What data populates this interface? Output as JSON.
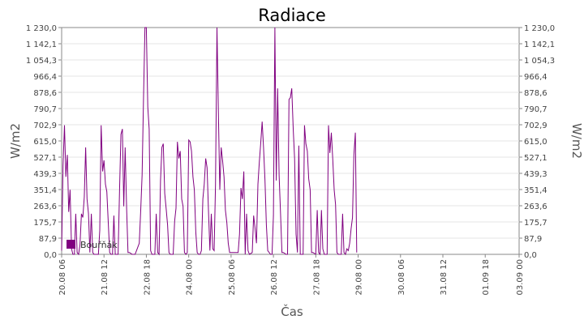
{
  "chart_data": {
    "type": "line",
    "title": "Radiace",
    "xlabel": "Čas",
    "ylabel_left": "W/m2",
    "ylabel_right": "W/m2",
    "ylim": [
      0,
      1230
    ],
    "yticks": [
      "0,0",
      "87,9",
      "175,7",
      "263,6",
      "351,4",
      "439,3",
      "527,1",
      "615,0",
      "702,9",
      "790,7",
      "878,6",
      "966,4",
      "1 054,3",
      "1 142,1",
      "1 230,0"
    ],
    "xlim_hours": [
      0,
      324
    ],
    "xticks": [
      {
        "label": "20.08 06",
        "h": 0
      },
      {
        "label": "21.08 12",
        "h": 30
      },
      {
        "label": "22.08 18",
        "h": 60
      },
      {
        "label": "24.08 00",
        "h": 90
      },
      {
        "label": "25.08 06",
        "h": 120
      },
      {
        "label": "26.08 12",
        "h": 150
      },
      {
        "label": "27.08 18",
        "h": 180
      },
      {
        "label": "29.08 00",
        "h": 210
      },
      {
        "label": "30.08 06",
        "h": 240
      },
      {
        "label": "31.08 12",
        "h": 270
      },
      {
        "label": "01.09 18",
        "h": 300
      },
      {
        "label": "03.09 00",
        "h": 324
      }
    ],
    "grid": true,
    "legend": {
      "position": "bottom-left",
      "color": "#800080"
    },
    "series": [
      {
        "name": "Bouřňák",
        "color": "#800080",
        "points": [
          [
            0,
            20
          ],
          [
            1,
            480
          ],
          [
            2,
            700
          ],
          [
            3,
            420
          ],
          [
            4,
            540
          ],
          [
            5,
            230
          ],
          [
            6,
            350
          ],
          [
            7,
            30
          ],
          [
            8,
            0
          ],
          [
            9,
            0
          ],
          [
            10,
            220
          ],
          [
            11,
            10
          ],
          [
            12,
            0
          ],
          [
            13,
            50
          ],
          [
            14,
            220
          ],
          [
            15,
            200
          ],
          [
            16,
            310
          ],
          [
            17,
            580
          ],
          [
            18,
            300
          ],
          [
            19,
            220
          ],
          [
            20,
            10
          ],
          [
            21,
            220
          ],
          [
            22,
            10
          ],
          [
            23,
            0
          ],
          [
            25,
            0
          ],
          [
            26,
            0
          ],
          [
            27,
            130
          ],
          [
            28,
            700
          ],
          [
            29,
            450
          ],
          [
            30,
            510
          ],
          [
            31,
            380
          ],
          [
            32,
            340
          ],
          [
            33,
            180
          ],
          [
            34,
            10
          ],
          [
            35,
            0
          ],
          [
            36,
            0
          ],
          [
            37,
            210
          ],
          [
            38,
            0
          ],
          [
            40,
            0
          ],
          [
            41,
            350
          ],
          [
            42,
            650
          ],
          [
            43,
            680
          ],
          [
            44,
            260
          ],
          [
            45,
            580
          ],
          [
            46,
            250
          ],
          [
            47,
            10
          ],
          [
            48,
            10
          ],
          [
            50,
            0
          ],
          [
            52,
            0
          ],
          [
            53,
            20
          ],
          [
            55,
            60
          ],
          [
            56,
            240
          ],
          [
            57,
            430
          ],
          [
            58,
            860
          ],
          [
            59,
            1230
          ],
          [
            60,
            1240
          ],
          [
            61,
            800
          ],
          [
            62,
            680
          ],
          [
            63,
            20
          ],
          [
            64,
            0
          ],
          [
            66,
            0
          ],
          [
            67,
            220
          ],
          [
            68,
            10
          ],
          [
            69,
            0
          ],
          [
            70,
            400
          ],
          [
            71,
            580
          ],
          [
            72,
            600
          ],
          [
            73,
            330
          ],
          [
            74,
            250
          ],
          [
            75,
            160
          ],
          [
            76,
            10
          ],
          [
            77,
            0
          ],
          [
            79,
            0
          ],
          [
            80,
            180
          ],
          [
            81,
            250
          ],
          [
            82,
            610
          ],
          [
            83,
            520
          ],
          [
            84,
            560
          ],
          [
            85,
            300
          ],
          [
            86,
            260
          ],
          [
            87,
            10
          ],
          [
            88,
            0
          ],
          [
            89,
            10
          ],
          [
            90,
            620
          ],
          [
            91,
            610
          ],
          [
            92,
            560
          ],
          [
            93,
            420
          ],
          [
            94,
            350
          ],
          [
            95,
            120
          ],
          [
            96,
            10
          ],
          [
            97,
            0
          ],
          [
            98,
            0
          ],
          [
            99,
            20
          ],
          [
            100,
            300
          ],
          [
            101,
            380
          ],
          [
            102,
            520
          ],
          [
            103,
            470
          ],
          [
            104,
            240
          ],
          [
            105,
            20
          ],
          [
            106,
            220
          ],
          [
            107,
            30
          ],
          [
            108,
            20
          ],
          [
            109,
            380
          ],
          [
            110,
            1230
          ],
          [
            111,
            780
          ],
          [
            112,
            350
          ],
          [
            113,
            580
          ],
          [
            114,
            510
          ],
          [
            115,
            420
          ],
          [
            116,
            240
          ],
          [
            117,
            170
          ],
          [
            118,
            60
          ],
          [
            119,
            10
          ],
          [
            120,
            10
          ],
          [
            122,
            10
          ],
          [
            124,
            10
          ],
          [
            125,
            10
          ],
          [
            126,
            110
          ],
          [
            127,
            360
          ],
          [
            128,
            300
          ],
          [
            129,
            450
          ],
          [
            130,
            0
          ],
          [
            131,
            220
          ],
          [
            132,
            20
          ],
          [
            133,
            0
          ],
          [
            135,
            10
          ],
          [
            136,
            210
          ],
          [
            137,
            140
          ],
          [
            138,
            60
          ],
          [
            139,
            380
          ],
          [
            140,
            500
          ],
          [
            141,
            600
          ],
          [
            142,
            720
          ],
          [
            143,
            580
          ],
          [
            144,
            400
          ],
          [
            145,
            160
          ],
          [
            146,
            20
          ],
          [
            148,
            0
          ],
          [
            149,
            0
          ],
          [
            150,
            210
          ],
          [
            151,
            1230
          ],
          [
            152,
            400
          ],
          [
            153,
            900
          ],
          [
            154,
            430
          ],
          [
            155,
            230
          ],
          [
            156,
            10
          ],
          [
            157,
            10
          ],
          [
            159,
            0
          ],
          [
            160,
            0
          ],
          [
            161,
            840
          ],
          [
            162,
            850
          ],
          [
            163,
            900
          ],
          [
            164,
            680
          ],
          [
            165,
            520
          ],
          [
            166,
            110
          ],
          [
            167,
            10
          ],
          [
            168,
            590
          ],
          [
            169,
            0
          ],
          [
            171,
            0
          ],
          [
            172,
            700
          ],
          [
            173,
            600
          ],
          [
            174,
            560
          ],
          [
            175,
            410
          ],
          [
            176,
            350
          ],
          [
            177,
            10
          ],
          [
            178,
            10
          ],
          [
            180,
            0
          ],
          [
            181,
            240
          ],
          [
            182,
            10
          ],
          [
            183,
            0
          ],
          [
            184,
            240
          ],
          [
            185,
            30
          ],
          [
            186,
            0
          ],
          [
            188,
            0
          ],
          [
            189,
            700
          ],
          [
            190,
            550
          ],
          [
            191,
            660
          ],
          [
            192,
            520
          ],
          [
            193,
            350
          ],
          [
            194,
            270
          ],
          [
            195,
            10
          ],
          [
            196,
            0
          ],
          [
            198,
            0
          ],
          [
            199,
            220
          ],
          [
            200,
            10
          ],
          [
            201,
            0
          ],
          [
            202,
            30
          ],
          [
            203,
            20
          ],
          [
            204,
            60
          ],
          [
            205,
            140
          ],
          [
            206,
            200
          ],
          [
            207,
            540
          ],
          [
            208,
            660
          ],
          [
            209,
            10
          ]
        ]
      }
    ]
  }
}
